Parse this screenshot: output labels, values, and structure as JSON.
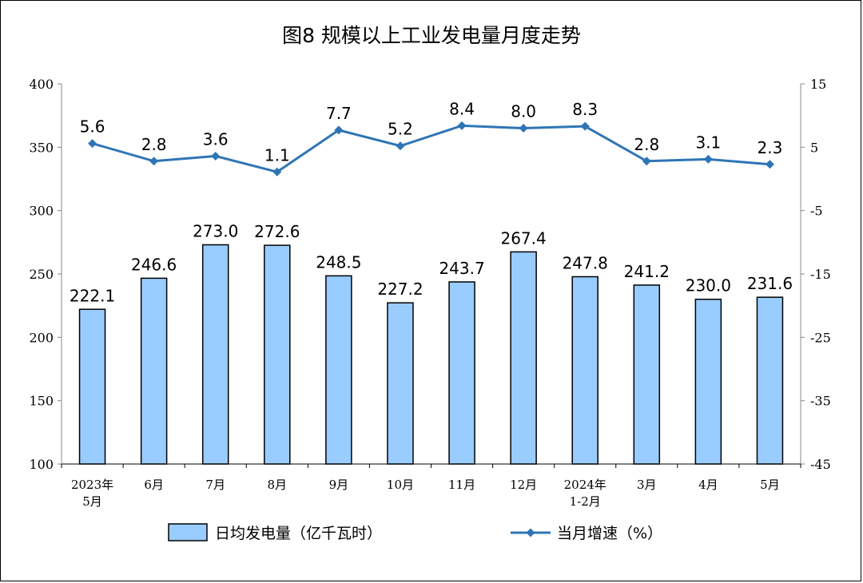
{
  "chart_data": {
    "type": "bar",
    "title": "图8  规模以上工业发电量月度走势",
    "categories": [
      [
        "2023年",
        "5月"
      ],
      [
        "6月"
      ],
      [
        "7月"
      ],
      [
        "8月"
      ],
      [
        "9月"
      ],
      [
        "10月"
      ],
      [
        "11月"
      ],
      [
        "12月"
      ],
      [
        "2024年",
        "1-2月"
      ],
      [
        "3月"
      ],
      [
        "4月"
      ],
      [
        "5月"
      ]
    ],
    "series": [
      {
        "name": "日均发电量（亿千瓦时）",
        "type": "bar",
        "axis": "left",
        "color": "#99CCFF",
        "values": [
          222.1,
          246.6,
          273.0,
          272.6,
          248.5,
          227.2,
          243.7,
          267.4,
          247.8,
          241.2,
          230.0,
          231.6
        ],
        "labels": [
          "222.1",
          "246.6",
          "273.0",
          "272.6",
          "248.5",
          "227.2",
          "243.7",
          "267.4",
          "247.8",
          "241.2",
          "230.0",
          "231.6"
        ]
      },
      {
        "name": "当月增速（%）",
        "type": "line",
        "axis": "right",
        "color": "#2E75B6",
        "values": [
          5.6,
          2.8,
          3.6,
          1.1,
          7.7,
          5.2,
          8.4,
          8.0,
          8.3,
          2.8,
          3.1,
          2.3
        ],
        "labels": [
          "5.6",
          "2.8",
          "3.6",
          "1.1",
          "7.7",
          "5.2",
          "8.4",
          "8.0",
          "8.3",
          "2.8",
          "3.1",
          "2.3"
        ]
      }
    ],
    "y_left": {
      "min": 100,
      "max": 400,
      "ticks": [
        "100",
        "150",
        "200",
        "250",
        "300",
        "350",
        "400"
      ]
    },
    "y_right": {
      "min": -45,
      "max": 15,
      "ticks": [
        "-45",
        "-35",
        "-25",
        "-15",
        "-5",
        "5",
        "15"
      ]
    },
    "grid": false,
    "legend_position": "bottom"
  }
}
